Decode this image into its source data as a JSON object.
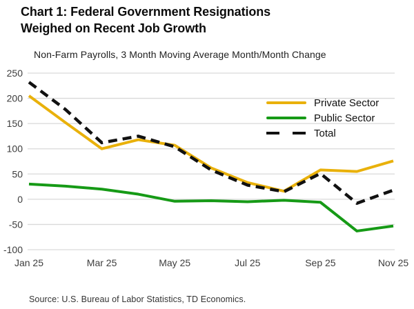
{
  "footer": {
    "source": "Source: U.S. Bureau of Labor Statistics, TD Economics."
  },
  "chart_data": {
    "type": "line",
    "title": "Chart 1: Federal Government Resignations Weighed on Recent Job Growth",
    "title_lines": [
      "Chart 1: Federal Government Resignations",
      "Weighed on Recent Job Growth"
    ],
    "subtitle": "Non-Farm Payrolls, 3 Month Moving Average Month/Month Change",
    "categories": [
      "Jan 25",
      "Feb 25",
      "Mar 25",
      "Apr 25",
      "May 25",
      "Jun 25",
      "Jul 25",
      "Aug 25",
      "Sep 25",
      "Oct 25",
      "Nov 25"
    ],
    "x_tick_labels": [
      "Jan 25",
      "Mar 25",
      "May 25",
      "Jul 25",
      "Sep 25",
      "Nov 25"
    ],
    "series": [
      {
        "name": "Private Sector",
        "color": "#E9B10B",
        "dash": null,
        "values": [
          205,
          152,
          100,
          118,
          107,
          62,
          33,
          16,
          58,
          55,
          76
        ]
      },
      {
        "name": "Public Sector",
        "color": "#169A16",
        "dash": null,
        "values": [
          30,
          26,
          20,
          10,
          -4,
          -3,
          -5,
          -2,
          -6,
          -63,
          -53
        ]
      },
      {
        "name": "Total",
        "color": "#111111",
        "dash": "13 8",
        "values": [
          232,
          178,
          112,
          125,
          104,
          58,
          28,
          15,
          51,
          -8,
          18
        ]
      }
    ],
    "ylim": [
      -100,
      250
    ],
    "y_ticks": [
      250,
      200,
      150,
      100,
      50,
      0,
      -50,
      -100
    ],
    "xlabel": "",
    "ylabel": "",
    "grid": "horizontal",
    "legend_position": "top-right"
  }
}
